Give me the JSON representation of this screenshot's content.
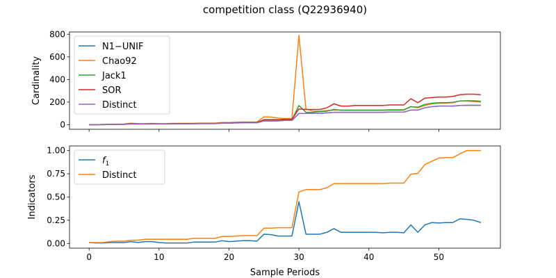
{
  "figure": {
    "title": "competition class (Q22936940)",
    "xlabel": "Sample Periods"
  },
  "chart_data": [
    {
      "type": "line",
      "ylabel": "Cardinality",
      "xlim": [
        -2.8,
        58.8
      ],
      "ylim": [
        -40,
        820
      ],
      "xticks": [
        0,
        10,
        20,
        30,
        40,
        50
      ],
      "yticks": [
        0,
        200,
        400,
        600,
        800
      ],
      "ytick_labels": [
        "0",
        "200",
        "400",
        "600",
        "800"
      ],
      "show_xticklabels": false,
      "legend": "top-left",
      "grid": false,
      "series": [
        {
          "name": "N1−UNIF",
          "color": "#1f77b4",
          "values": [
            0,
            0,
            1,
            2,
            3,
            3,
            8,
            6,
            7,
            8,
            7,
            7,
            8,
            8,
            8,
            9,
            10,
            10,
            10,
            14,
            14,
            16,
            17,
            17,
            17,
            34,
            34,
            34,
            38,
            38,
            100,
            100,
            100,
            100,
            105,
            110,
            110,
            110,
            110,
            110,
            110,
            110,
            110,
            112,
            112,
            112,
            130,
            130,
            150,
            160,
            165,
            165,
            165,
            170,
            172,
            172,
            172
          ]
        },
        {
          "name": "Chao92",
          "color": "#ff7f0e",
          "values": [
            0,
            1,
            2,
            3,
            5,
            6,
            14,
            10,
            10,
            12,
            10,
            10,
            12,
            12,
            12,
            13,
            14,
            14,
            14,
            20,
            20,
            22,
            24,
            24,
            24,
            70,
            68,
            60,
            55,
            55,
            790,
            140,
            120,
            120,
            125,
            130,
            130,
            130,
            130,
            130,
            130,
            130,
            130,
            133,
            133,
            133,
            160,
            150,
            170,
            185,
            190,
            190,
            195,
            210,
            210,
            205,
            200
          ]
        },
        {
          "name": "Jack1",
          "color": "#2ca02c",
          "values": [
            0,
            1,
            2,
            3,
            4,
            5,
            10,
            8,
            8,
            10,
            8,
            8,
            10,
            10,
            10,
            11,
            12,
            12,
            12,
            16,
            16,
            18,
            20,
            20,
            20,
            42,
            42,
            42,
            45,
            45,
            170,
            110,
            110,
            115,
            120,
            135,
            128,
            128,
            128,
            128,
            128,
            128,
            128,
            130,
            130,
            130,
            160,
            155,
            180,
            190,
            195,
            195,
            198,
            210,
            212,
            212,
            208
          ]
        },
        {
          "name": "SOR",
          "color": "#d62728",
          "values": [
            0,
            1,
            2,
            3,
            4,
            5,
            10,
            8,
            8,
            10,
            8,
            8,
            10,
            10,
            10,
            11,
            12,
            12,
            12,
            16,
            16,
            18,
            20,
            20,
            20,
            45,
            45,
            45,
            48,
            48,
            140,
            135,
            135,
            135,
            150,
            185,
            165,
            165,
            170,
            170,
            170,
            170,
            170,
            175,
            175,
            175,
            230,
            195,
            235,
            240,
            245,
            245,
            250,
            265,
            270,
            270,
            265
          ]
        },
        {
          "name": "Distinct",
          "color": "#9467bd",
          "values": [
            0,
            0,
            1,
            2,
            3,
            3,
            8,
            6,
            7,
            8,
            7,
            7,
            8,
            8,
            8,
            9,
            10,
            10,
            10,
            14,
            14,
            16,
            17,
            17,
            17,
            34,
            34,
            34,
            38,
            38,
            100,
            100,
            100,
            100,
            105,
            110,
            110,
            110,
            110,
            110,
            110,
            110,
            110,
            112,
            112,
            112,
            130,
            130,
            150,
            160,
            165,
            165,
            165,
            170,
            172,
            172,
            172
          ]
        }
      ]
    },
    {
      "type": "line",
      "ylabel": "Indicators",
      "xlim": [
        -2.8,
        58.8
      ],
      "ylim": [
        -0.05,
        1.05
      ],
      "xticks": [
        0,
        10,
        20,
        30,
        40,
        50
      ],
      "xtick_labels": [
        "0",
        "10",
        "20",
        "30",
        "40",
        "50"
      ],
      "yticks": [
        0,
        0.25,
        0.5,
        0.75,
        1.0
      ],
      "ytick_labels": [
        "0.00",
        "0.25",
        "0.50",
        "0.75",
        "1.00"
      ],
      "legend": "top-left",
      "grid": false,
      "series": [
        {
          "name": "f",
          "subscript": "1",
          "color": "#1f77b4",
          "values": [
            0.01,
            0.005,
            0.005,
            0.01,
            0.01,
            0.01,
            0.02,
            0.01,
            0.02,
            0.02,
            0.01,
            0.005,
            0.005,
            0.005,
            0.005,
            0.015,
            0.015,
            0.015,
            0.015,
            0.03,
            0.02,
            0.025,
            0.03,
            0.03,
            0.025,
            0.1,
            0.095,
            0.08,
            0.08,
            0.08,
            0.45,
            0.1,
            0.1,
            0.1,
            0.12,
            0.16,
            0.12,
            0.12,
            0.12,
            0.12,
            0.12,
            0.12,
            0.115,
            0.12,
            0.12,
            0.115,
            0.2,
            0.12,
            0.2,
            0.225,
            0.22,
            0.225,
            0.225,
            0.265,
            0.26,
            0.25,
            0.225
          ]
        },
        {
          "name": "Distinct",
          "color": "#ff7f0e",
          "values": [
            0.01,
            0.01,
            0.01,
            0.02,
            0.025,
            0.025,
            0.035,
            0.035,
            0.045,
            0.045,
            0.045,
            0.045,
            0.045,
            0.045,
            0.045,
            0.055,
            0.055,
            0.055,
            0.055,
            0.075,
            0.075,
            0.08,
            0.085,
            0.085,
            0.085,
            0.165,
            0.165,
            0.17,
            0.17,
            0.17,
            0.555,
            0.58,
            0.58,
            0.58,
            0.6,
            0.645,
            0.645,
            0.645,
            0.645,
            0.645,
            0.645,
            0.645,
            0.645,
            0.65,
            0.65,
            0.65,
            0.745,
            0.755,
            0.85,
            0.885,
            0.92,
            0.925,
            0.925,
            0.965,
            1.0,
            1.0,
            1.0
          ]
        }
      ]
    }
  ]
}
